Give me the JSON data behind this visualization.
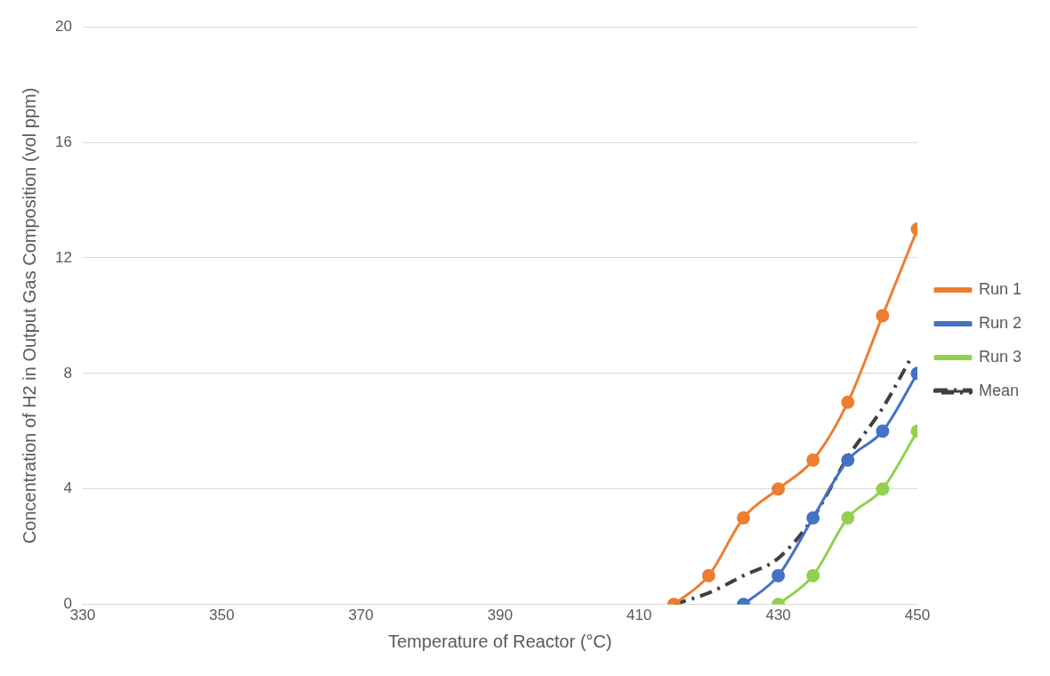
{
  "chart_data": {
    "type": "line",
    "xlabel": "Temperature of Reactor (°C)",
    "ylabel": "Concentration of H2 in Output Gas Composition (vol ppm)",
    "xlim": [
      330,
      450
    ],
    "xticks": [
      330,
      350,
      370,
      390,
      410,
      430,
      450
    ],
    "ylim": [
      0,
      20
    ],
    "yticks": [
      0,
      4,
      8,
      12,
      16,
      20
    ],
    "grid": "y",
    "legend": "right",
    "marker": "circle",
    "line_style": "solid",
    "series": [
      {
        "name": "Run 1",
        "color": "#ed7d31",
        "x": [
          415,
          420,
          425,
          430,
          435,
          440,
          445,
          450
        ],
        "values": [
          0,
          1,
          3,
          4,
          5,
          7,
          10,
          13
        ]
      },
      {
        "name": "Run 2",
        "color": "#4472c4",
        "x": [
          425,
          430,
          435,
          440,
          445,
          450
        ],
        "values": [
          0,
          1,
          3,
          5,
          6,
          8
        ]
      },
      {
        "name": "Run 3",
        "color": "#92d050",
        "x": [
          430,
          435,
          440,
          445,
          450
        ],
        "values": [
          0,
          1,
          3,
          4,
          6
        ]
      },
      {
        "name": "Mean",
        "color": "#404040",
        "marker": "none",
        "line_style": "dashed",
        "x": [
          415,
          420,
          425,
          430,
          435,
          440,
          445,
          449
        ],
        "values": [
          0,
          0.4,
          1,
          1.6,
          3,
          5.1,
          6.8,
          8.5
        ]
      }
    ]
  }
}
